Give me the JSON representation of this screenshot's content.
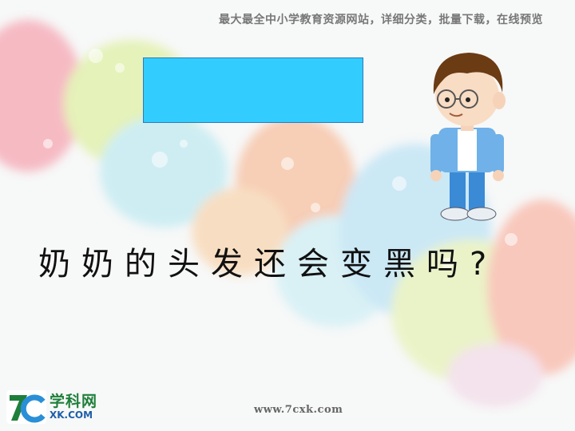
{
  "header": {
    "text": "最大最全中小学教育资源网站，详细分类，批量下载，在线预览"
  },
  "main": {
    "question": "奶奶的头发还会变黑吗?"
  },
  "colors": {
    "box_fill": "#33ccff",
    "box_border": "#2a7cbf"
  },
  "logo": {
    "mark": "7c",
    "name_cn": "学科网",
    "name_en": "XK.COM"
  },
  "footer": {
    "url": "www.7cxk.com"
  }
}
